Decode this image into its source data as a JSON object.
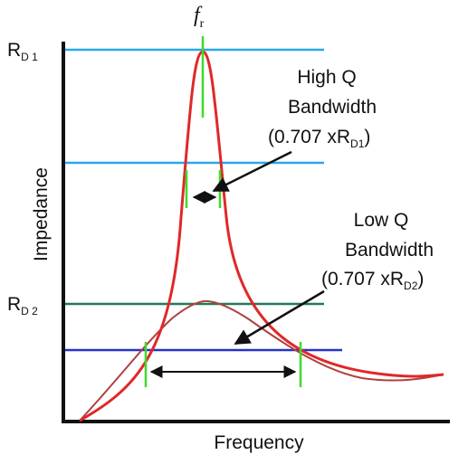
{
  "diagram": {
    "resonant_frequency": {
      "symbol": "f",
      "subscript": "r"
    },
    "rd1_label": {
      "main": "R",
      "sub": "D 1"
    },
    "rd2_label": {
      "main": "R",
      "sub": "D 2"
    },
    "y_axis_label": "Impedance",
    "x_axis_label": "Frequency",
    "high_q": {
      "line1": "High Q",
      "line2": "Bandwidth",
      "line3_prefix": "(0.707 xR",
      "line3_sub": "D1",
      "line3_suffix": ")"
    },
    "low_q": {
      "line1": "Low Q",
      "line2": "Bandwidth",
      "line3_prefix": "(0.707 xR",
      "line3_sub": "D2",
      "line3_suffix": ")"
    },
    "colors": {
      "axis": "#111111",
      "high_q_curve": "#e02828",
      "low_q_curve": "#b04040",
      "rd1_line": "#2aa8e8",
      "rd1_half_line": "#2aa8e8",
      "rd2_line": "#1f7a55",
      "rd2_half_line": "#2432c8",
      "markers": "#3cdc28",
      "arrows": "#111111"
    }
  }
}
